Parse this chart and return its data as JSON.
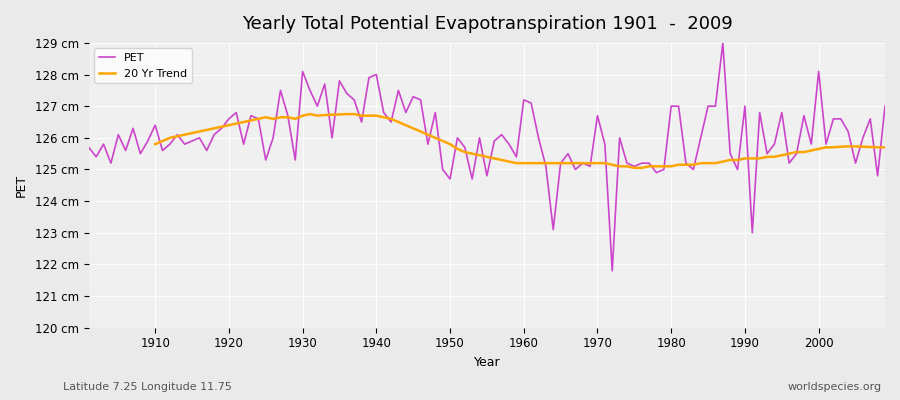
{
  "title": "Yearly Total Potential Evapotranspiration 1901  -  2009",
  "xlabel": "Year",
  "ylabel": "PET",
  "subtitle_left": "Latitude 7.25 Longitude 11.75",
  "subtitle_right": "worldspecies.org",
  "pet_color": "#cc44cc",
  "trend_color": "#ffa500",
  "background_color": "#eaeaea",
  "plot_bg_color": "#f0f0f0",
  "ylim": [
    120,
    129
  ],
  "xlim": [
    1901,
    2009
  ],
  "ytick_labels": [
    "120 cm",
    "121 cm",
    "122 cm",
    "123 cm",
    "124 cm",
    "125 cm",
    "126 cm",
    "127 cm",
    "128 cm",
    "129 cm"
  ],
  "ytick_values": [
    120,
    121,
    122,
    123,
    124,
    125,
    126,
    127,
    128,
    129
  ],
  "years": [
    1901,
    1902,
    1903,
    1904,
    1905,
    1906,
    1907,
    1908,
    1909,
    1910,
    1911,
    1912,
    1913,
    1914,
    1915,
    1916,
    1917,
    1918,
    1919,
    1920,
    1921,
    1922,
    1923,
    1924,
    1925,
    1926,
    1927,
    1928,
    1929,
    1930,
    1931,
    1932,
    1933,
    1934,
    1935,
    1936,
    1937,
    1938,
    1939,
    1940,
    1941,
    1942,
    1943,
    1944,
    1945,
    1946,
    1947,
    1948,
    1949,
    1950,
    1951,
    1952,
    1953,
    1954,
    1955,
    1956,
    1957,
    1958,
    1959,
    1960,
    1961,
    1962,
    1963,
    1964,
    1965,
    1966,
    1967,
    1968,
    1969,
    1970,
    1971,
    1972,
    1973,
    1974,
    1975,
    1976,
    1977,
    1978,
    1979,
    1980,
    1981,
    1982,
    1983,
    1984,
    1985,
    1986,
    1987,
    1988,
    1989,
    1990,
    1991,
    1992,
    1993,
    1994,
    1995,
    1996,
    1997,
    1998,
    1999,
    2000,
    2001,
    2002,
    2003,
    2004,
    2005,
    2006,
    2007,
    2008,
    2009
  ],
  "pet_values": [
    125.7,
    125.4,
    125.8,
    125.2,
    126.1,
    125.6,
    126.3,
    125.5,
    125.9,
    126.4,
    125.6,
    125.8,
    126.1,
    125.8,
    125.9,
    126.0,
    125.6,
    126.1,
    126.3,
    126.6,
    126.8,
    125.8,
    126.7,
    126.6,
    125.3,
    126.0,
    127.5,
    126.7,
    125.3,
    128.1,
    127.5,
    127.0,
    127.7,
    126.0,
    127.8,
    127.4,
    127.2,
    126.5,
    127.9,
    128.0,
    126.8,
    126.5,
    127.5,
    126.8,
    127.3,
    127.2,
    125.8,
    126.8,
    125.0,
    124.7,
    126.0,
    125.7,
    124.7,
    126.0,
    124.8,
    125.9,
    126.1,
    125.8,
    125.4,
    127.2,
    127.1,
    126.0,
    125.1,
    123.1,
    125.2,
    125.5,
    125.0,
    125.2,
    125.1,
    126.7,
    125.8,
    121.8,
    126.0,
    125.2,
    125.1,
    125.2,
    125.2,
    124.9,
    125.0,
    127.0,
    127.0,
    125.2,
    125.0,
    126.0,
    127.0,
    127.0,
    129.0,
    125.5,
    125.0,
    127.0,
    123.0,
    126.8,
    125.5,
    125.8,
    126.8,
    125.2,
    125.5,
    126.7,
    125.8,
    128.1,
    125.8,
    126.6,
    126.6,
    126.2,
    125.2,
    126.0,
    126.6,
    124.8,
    127.0
  ],
  "trend_years": [
    1910,
    1911,
    1912,
    1913,
    1914,
    1915,
    1916,
    1917,
    1918,
    1919,
    1920,
    1921,
    1922,
    1923,
    1924,
    1925,
    1926,
    1927,
    1928,
    1929,
    1930,
    1931,
    1932,
    1933,
    1934,
    1935,
    1936,
    1937,
    1938,
    1939,
    1940,
    1941,
    1942,
    1943,
    1944,
    1945,
    1946,
    1947,
    1948,
    1949,
    1950,
    1951,
    1952,
    1953,
    1954,
    1955,
    1956,
    1957,
    1958,
    1959,
    1960,
    1961,
    1962,
    1963,
    1964,
    1965,
    1966,
    1967,
    1968,
    1969,
    1970,
    1971,
    1972,
    1973,
    1974,
    1975,
    1976,
    1977,
    1978,
    1979,
    1980,
    1981,
    1982,
    1983,
    1984,
    1985,
    1986,
    1987,
    1988,
    1989,
    1990,
    1991,
    1992,
    1993,
    1994,
    1995,
    1996,
    1997,
    1998,
    1999,
    2000,
    2001,
    2002,
    2003,
    2004,
    2005,
    2006,
    2007,
    2008,
    2009
  ],
  "trend_values": [
    125.8,
    125.9,
    126.0,
    126.05,
    126.1,
    126.15,
    126.2,
    126.25,
    126.3,
    126.35,
    126.4,
    126.45,
    126.5,
    126.55,
    126.6,
    126.65,
    126.6,
    126.65,
    126.65,
    126.6,
    126.7,
    126.75,
    126.7,
    126.72,
    126.73,
    126.74,
    126.75,
    126.75,
    126.7,
    126.7,
    126.7,
    126.65,
    126.6,
    126.5,
    126.4,
    126.3,
    126.2,
    126.1,
    126.0,
    125.9,
    125.8,
    125.65,
    125.55,
    125.5,
    125.45,
    125.4,
    125.35,
    125.3,
    125.25,
    125.2,
    125.2,
    125.2,
    125.2,
    125.2,
    125.2,
    125.2,
    125.2,
    125.2,
    125.2,
    125.2,
    125.2,
    125.2,
    125.15,
    125.1,
    125.1,
    125.05,
    125.05,
    125.1,
    125.1,
    125.1,
    125.1,
    125.15,
    125.15,
    125.15,
    125.2,
    125.2,
    125.2,
    125.25,
    125.3,
    125.3,
    125.35,
    125.35,
    125.35,
    125.4,
    125.4,
    125.45,
    125.5,
    125.55,
    125.55,
    125.6,
    125.65,
    125.7,
    125.7,
    125.72,
    125.73,
    125.73,
    125.72,
    125.71,
    125.7,
    125.7
  ]
}
